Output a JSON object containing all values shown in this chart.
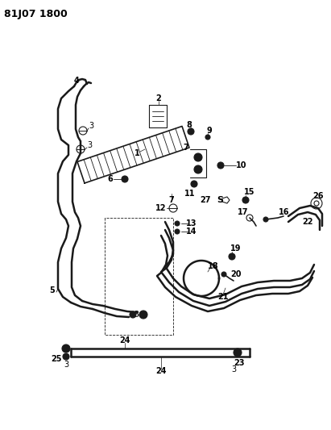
{
  "title": "81J07 1800",
  "bg_color": "#ffffff",
  "line_color": "#1a1a1a",
  "figsize": [
    4.11,
    5.33
  ],
  "dpi": 100
}
